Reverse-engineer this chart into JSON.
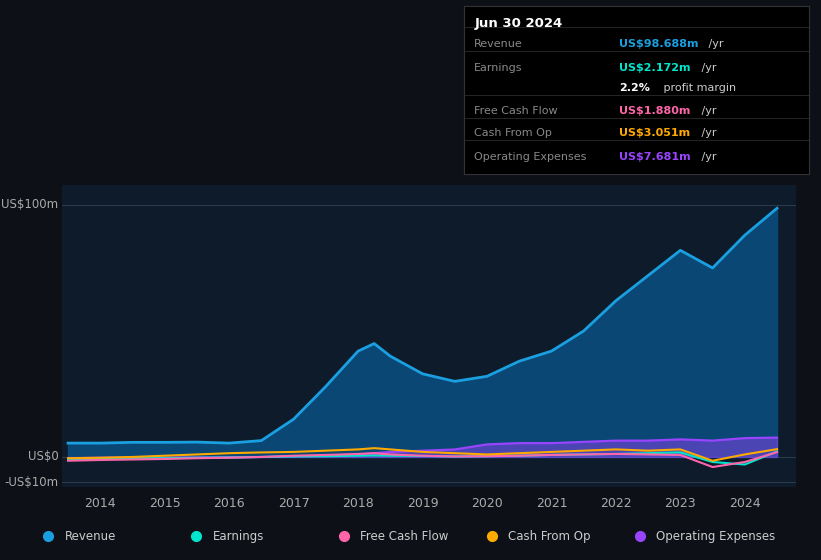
{
  "background_color": "#0d1117",
  "plot_bg_color": "#0d1b2a",
  "grid_color": "#2a3a4a",
  "title_box_date": "Jun 30 2024",
  "years": [
    2013.5,
    2014.0,
    2014.5,
    2015.0,
    2015.5,
    2016.0,
    2016.5,
    2017.0,
    2017.5,
    2018.0,
    2018.25,
    2018.5,
    2019.0,
    2019.5,
    2020.0,
    2020.5,
    2021.0,
    2021.5,
    2022.0,
    2022.5,
    2023.0,
    2023.5,
    2024.0,
    2024.5
  ],
  "revenue": [
    5.5,
    5.5,
    5.8,
    5.8,
    5.9,
    5.5,
    6.5,
    15.0,
    28.0,
    42.0,
    45.0,
    40.0,
    33.0,
    30.0,
    32.0,
    38.0,
    42.0,
    50.0,
    62.0,
    72.0,
    82.0,
    75.0,
    88.0,
    98.7
  ],
  "earnings": [
    -1.0,
    -0.8,
    -0.5,
    -0.5,
    -0.3,
    -0.2,
    0.0,
    0.2,
    0.3,
    0.5,
    0.6,
    0.5,
    0.4,
    0.2,
    0.3,
    0.5,
    0.8,
    1.0,
    1.2,
    1.5,
    1.8,
    -2.0,
    -3.0,
    2.2
  ],
  "free_cash_flow": [
    -1.5,
    -1.2,
    -1.0,
    -0.8,
    -0.5,
    -0.3,
    0.0,
    0.5,
    0.8,
    1.2,
    1.5,
    1.0,
    0.5,
    0.2,
    0.3,
    0.5,
    0.8,
    1.0,
    1.2,
    1.0,
    0.8,
    -4.0,
    -2.0,
    1.9
  ],
  "cash_from_op": [
    -0.5,
    -0.3,
    0.0,
    0.5,
    1.0,
    1.5,
    1.8,
    2.0,
    2.5,
    3.0,
    3.5,
    3.0,
    2.0,
    1.5,
    1.0,
    1.5,
    2.0,
    2.5,
    3.0,
    2.5,
    3.0,
    -1.5,
    1.0,
    3.1
  ],
  "operating_expenses": [
    -0.5,
    -0.3,
    -0.2,
    -0.2,
    -0.2,
    -0.1,
    0.0,
    0.2,
    0.5,
    1.0,
    1.5,
    2.0,
    2.5,
    3.0,
    5.0,
    5.5,
    5.5,
    6.0,
    6.5,
    6.5,
    7.0,
    6.5,
    7.5,
    7.7
  ],
  "revenue_color": "#1a9fe0",
  "revenue_fill": "#0a4a7a",
  "earnings_color": "#00e5cc",
  "free_cash_color": "#ff66aa",
  "cash_op_color": "#ffaa00",
  "op_exp_color": "#9944ff",
  "ylabel_100": "US$100m",
  "ylabel_0": "US$0",
  "ylabel_neg10": "-US$10m",
  "x_ticks": [
    2014,
    2015,
    2016,
    2017,
    2018,
    2019,
    2020,
    2021,
    2022,
    2023,
    2024
  ],
  "ylim": [
    -12,
    108
  ],
  "xlim": [
    2013.4,
    2024.8
  ],
  "legend_items": [
    {
      "label": "Revenue",
      "color": "#1a9fe0"
    },
    {
      "label": "Earnings",
      "color": "#00e5cc"
    },
    {
      "label": "Free Cash Flow",
      "color": "#ff66aa"
    },
    {
      "label": "Cash From Op",
      "color": "#ffaa00"
    },
    {
      "label": "Operating Expenses",
      "color": "#9944ff"
    }
  ],
  "info_rows": [
    {
      "label": "Revenue",
      "value": "US$98.688m",
      "unit": " /yr",
      "value_color": "#1a9fe0"
    },
    {
      "label": "Earnings",
      "value": "US$2.172m",
      "unit": " /yr",
      "value_color": "#00e5cc"
    },
    {
      "label": "",
      "value": "2.2%",
      "unit": " profit margin",
      "value_color": "#ffffff"
    },
    {
      "label": "Free Cash Flow",
      "value": "US$1.880m",
      "unit": " /yr",
      "value_color": "#ff66aa"
    },
    {
      "label": "Cash From Op",
      "value": "US$3.051m",
      "unit": " /yr",
      "value_color": "#ffaa00"
    },
    {
      "label": "Operating Expenses",
      "value": "US$7.681m",
      "unit": " /yr",
      "value_color": "#9944ff"
    }
  ]
}
